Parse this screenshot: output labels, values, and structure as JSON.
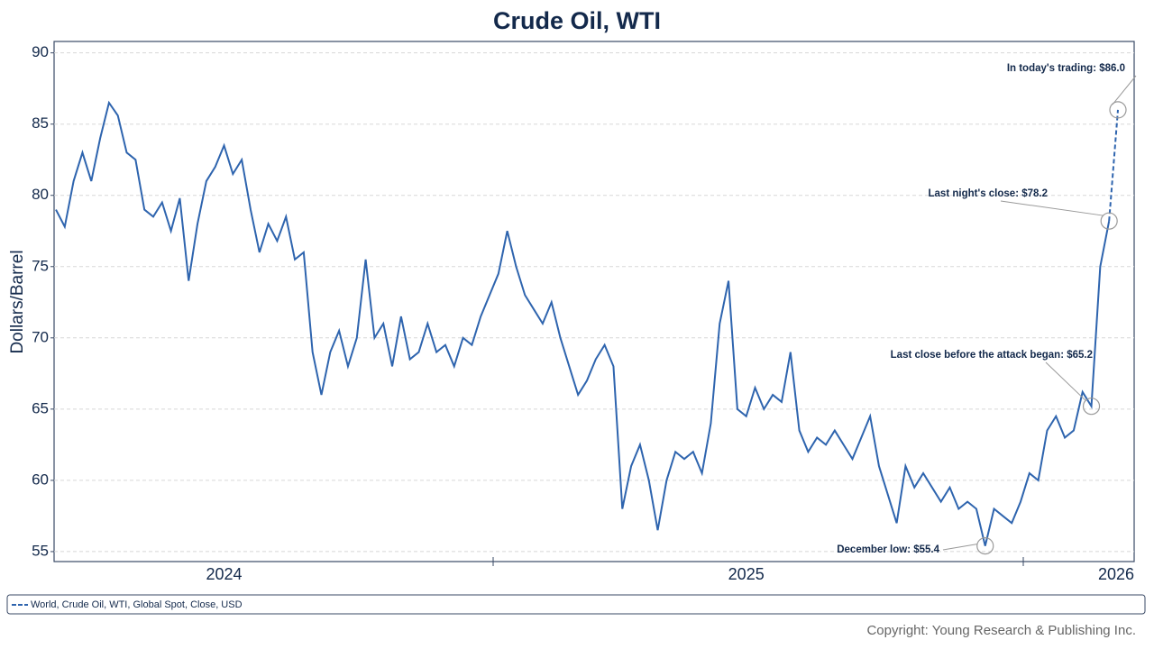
{
  "chart_data": {
    "type": "line",
    "title": "Crude Oil, WTI",
    "y_label": "Dollars/Barrel",
    "copyright": "Copyright: Young Research & Publishing Inc.",
    "categories": [
      null,
      null,
      null,
      null,
      null,
      null,
      null,
      null,
      null,
      null,
      null,
      null,
      null,
      null,
      null,
      null,
      null,
      null,
      null,
      "2024",
      null,
      null,
      null,
      null,
      null,
      null,
      null,
      null,
      null,
      null,
      null,
      null,
      null,
      null,
      null,
      null,
      null,
      null,
      null,
      null,
      null,
      null,
      null,
      null,
      null,
      null,
      null,
      null,
      null,
      null,
      null,
      null,
      null,
      null,
      null,
      null,
      null,
      null,
      null,
      null,
      null,
      null,
      null,
      null,
      null,
      null,
      null,
      null,
      null,
      null,
      null,
      null,
      null,
      null,
      null,
      null,
      null,
      null,
      "2025",
      null,
      null,
      null,
      null,
      null,
      null,
      null,
      null,
      null,
      null,
      null,
      null,
      null,
      null,
      null,
      null,
      null,
      null,
      null,
      null,
      null,
      null,
      null,
      null,
      null,
      null,
      null,
      null,
      null,
      null,
      null,
      null,
      null,
      null,
      null,
      null,
      null,
      null,
      null,
      null,
      null,
      "2026"
    ],
    "series": [
      {
        "name": "World, Crude Oil, WTI, Global Spot, Close, USD",
        "color": "#2e64ae",
        "dashed_last_segment": true,
        "values": [
          79,
          77.8,
          81,
          83,
          81,
          84,
          86.5,
          85.6,
          83,
          82.5,
          79,
          78.5,
          79.5,
          77.5,
          79.8,
          74,
          78,
          81,
          82,
          83.5,
          81.5,
          82.5,
          79,
          76,
          78,
          76.8,
          78.5,
          75.5,
          76,
          69,
          66,
          69,
          70.5,
          68,
          70,
          75.5,
          70,
          71,
          68,
          71.5,
          68.5,
          69,
          71,
          69,
          69.5,
          68,
          70,
          69.5,
          71.5,
          73,
          74.5,
          77.5,
          75,
          73,
          72,
          71,
          72.5,
          70,
          68,
          66,
          67,
          68.5,
          69.5,
          68,
          58,
          61,
          62.5,
          60,
          56.5,
          60,
          62,
          61.5,
          62,
          60.5,
          64,
          71,
          74,
          65,
          64.5,
          66.5,
          65,
          66,
          65.5,
          69,
          63.5,
          62,
          63,
          62.5,
          63.5,
          62.5,
          61.5,
          63,
          64.5,
          61,
          59,
          57,
          61,
          59.5,
          60.5,
          59.5,
          58.5,
          59.5,
          58,
          58.5,
          58,
          55.4,
          58,
          57.5,
          57,
          58.5,
          60.5,
          60,
          63.5,
          64.5,
          63,
          63.5,
          66.2,
          65.2,
          75,
          78.2,
          86.0
        ]
      }
    ],
    "annotations": [
      {
        "text": "In today's trading: $86.0",
        "value": 86.0
      },
      {
        "text": "Last night's close: $78.2",
        "value": 78.2
      },
      {
        "text": "Last close before the attack began: $65.2",
        "value": 65.2
      },
      {
        "text": "December low: $55.4",
        "value": 55.4
      }
    ],
    "ylim": [
      54.3,
      90.8
    ],
    "yticks": [
      55,
      60,
      65,
      70,
      75,
      80,
      85,
      90
    ],
    "grid": true,
    "legend": "bottom"
  }
}
